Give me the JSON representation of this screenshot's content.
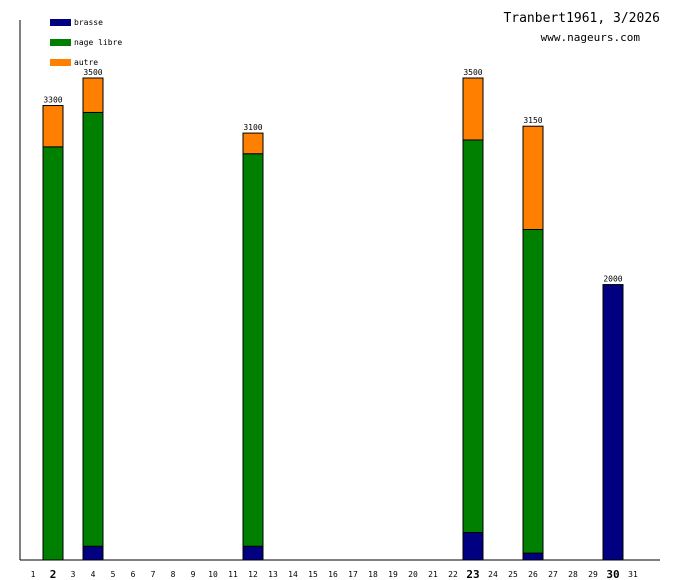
{
  "title": "Tranbert1961, 3/2026",
  "site": "www.nageurs.com",
  "colors": {
    "brasse": "#000080",
    "nage_libre": "#008000",
    "autre": "#ff8000"
  },
  "chart_data": {
    "type": "bar",
    "stacked": true,
    "title": "Tranbert1961, 3/2026",
    "xlabel": "",
    "ylabel": "",
    "ylim": [
      0,
      3500
    ],
    "legend_position": "top-left",
    "categories": [
      "1",
      "2",
      "3",
      "4",
      "5",
      "6",
      "7",
      "8",
      "9",
      "10",
      "11",
      "12",
      "13",
      "14",
      "15",
      "16",
      "17",
      "18",
      "19",
      "20",
      "21",
      "22",
      "23",
      "24",
      "25",
      "26",
      "27",
      "28",
      "29",
      "30",
      "31"
    ],
    "bold_categories": [
      "2",
      "23",
      "30"
    ],
    "series": [
      {
        "name": "brasse",
        "color": "#000080",
        "values": [
          0,
          0,
          0,
          100,
          0,
          0,
          0,
          0,
          0,
          0,
          0,
          100,
          0,
          0,
          0,
          0,
          0,
          0,
          0,
          0,
          0,
          0,
          200,
          0,
          0,
          50,
          0,
          0,
          0,
          2000,
          0
        ]
      },
      {
        "name": "nage libre",
        "color": "#008000",
        "values": [
          0,
          3000,
          0,
          3150,
          0,
          0,
          0,
          0,
          0,
          0,
          0,
          2850,
          0,
          0,
          0,
          0,
          0,
          0,
          0,
          0,
          0,
          0,
          2850,
          0,
          0,
          2350,
          0,
          0,
          0,
          0,
          0
        ]
      },
      {
        "name": "autre",
        "color": "#ff8000",
        "values": [
          0,
          300,
          0,
          250,
          0,
          0,
          0,
          0,
          0,
          0,
          0,
          150,
          0,
          0,
          0,
          0,
          0,
          0,
          0,
          0,
          0,
          0,
          450,
          0,
          0,
          750,
          0,
          0,
          0,
          0,
          0
        ]
      }
    ],
    "totals": [
      0,
      3300,
      0,
      3500,
      0,
      0,
      0,
      0,
      0,
      0,
      0,
      3100,
      0,
      0,
      0,
      0,
      0,
      0,
      0,
      0,
      0,
      0,
      3500,
      0,
      0,
      3150,
      0,
      0,
      0,
      2000,
      0
    ]
  }
}
